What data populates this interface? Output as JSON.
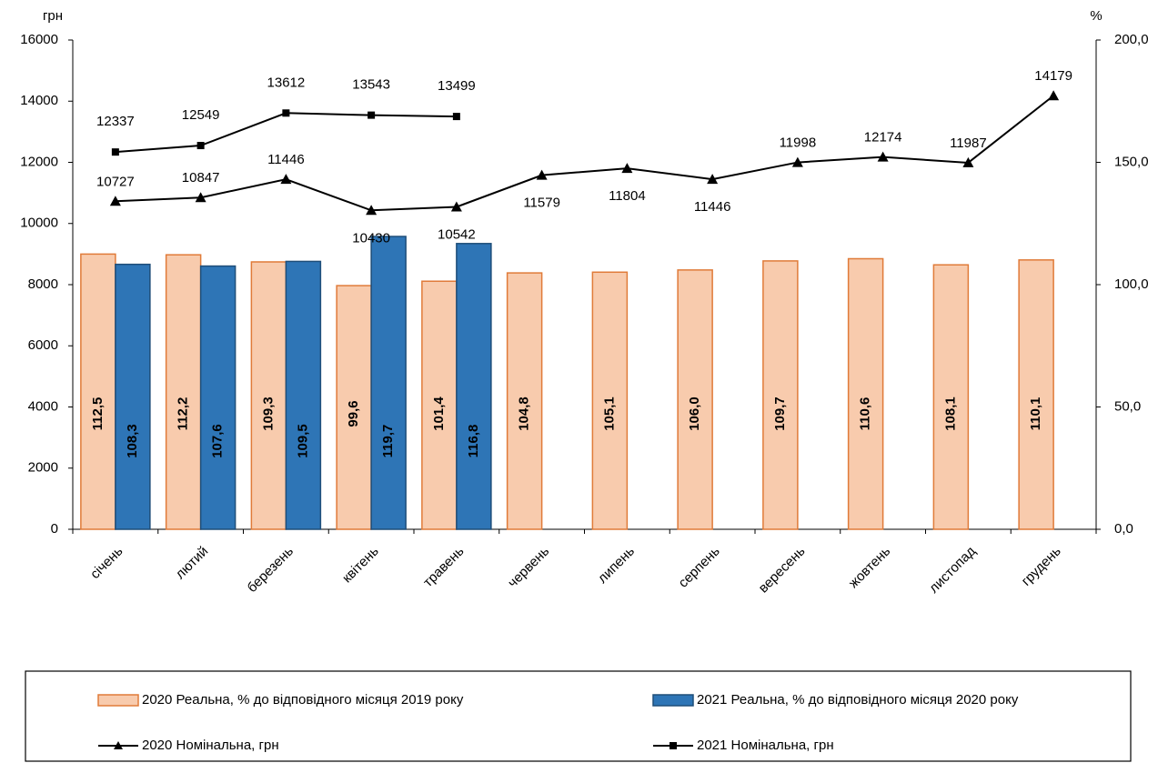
{
  "chart_data": {
    "type": "bar-line",
    "y_unit": "грн",
    "y2_unit": "%",
    "categories": [
      "січень",
      "лютий",
      "березень",
      "квітень",
      "травень",
      "червень",
      "липень",
      "серпень",
      "вересень",
      "жовтень",
      "листопад",
      "грудень"
    ],
    "series": [
      {
        "name": "2020 Реальна, % до відповідного місяця 2019 року",
        "kind": "bar",
        "axis": "y2",
        "color": "#f8cbad",
        "stroke": "#e07b39",
        "values": [
          112.5,
          112.2,
          109.3,
          99.6,
          101.4,
          104.8,
          105.1,
          106.0,
          109.7,
          110.6,
          108.1,
          110.1
        ],
        "value_labels": [
          "112,5",
          "112,2",
          "109,3",
          "99,6",
          "101,4",
          "104,8",
          "105,1",
          "106,0",
          "109,7",
          "110,6",
          "108,1",
          "110,1"
        ]
      },
      {
        "name": "2021 Реальна, % до відповідного місяця 2020 року",
        "kind": "bar",
        "axis": "y2",
        "color": "#2e75b6",
        "stroke": "#1f4e79",
        "values": [
          108.3,
          107.6,
          109.5,
          119.7,
          116.8,
          null,
          null,
          null,
          null,
          null,
          null,
          null
        ],
        "value_labels": [
          "108,3",
          "107,6",
          "109,5",
          "119,7",
          "116,8",
          null,
          null,
          null,
          null,
          null,
          null,
          null
        ]
      },
      {
        "name": "2020 Номінальна, грн",
        "kind": "line",
        "marker": "triangle",
        "color": "#000000",
        "values": [
          10727,
          10847,
          11446,
          10430,
          10542,
          11579,
          11804,
          11446,
          11998,
          12174,
          11987,
          14179
        ]
      },
      {
        "name": "2021 Номінальна, грн",
        "kind": "line",
        "marker": "square",
        "color": "#000000",
        "values": [
          12337,
          12549,
          13612,
          13543,
          13499,
          null,
          null,
          null,
          null,
          null,
          null,
          null
        ]
      }
    ],
    "ylim": [
      0,
      16000
    ],
    "yticks": [
      0,
      2000,
      4000,
      6000,
      8000,
      10000,
      12000,
      14000,
      16000
    ],
    "y2lim": [
      0,
      200
    ],
    "y2ticks": [
      {
        "value": 0,
        "label": "0,0"
      },
      {
        "value": 50,
        "label": "50,0"
      },
      {
        "value": 100,
        "label": "100,0"
      },
      {
        "value": 150,
        "label": "150,0"
      },
      {
        "value": 200,
        "label": "200,0"
      }
    ]
  }
}
